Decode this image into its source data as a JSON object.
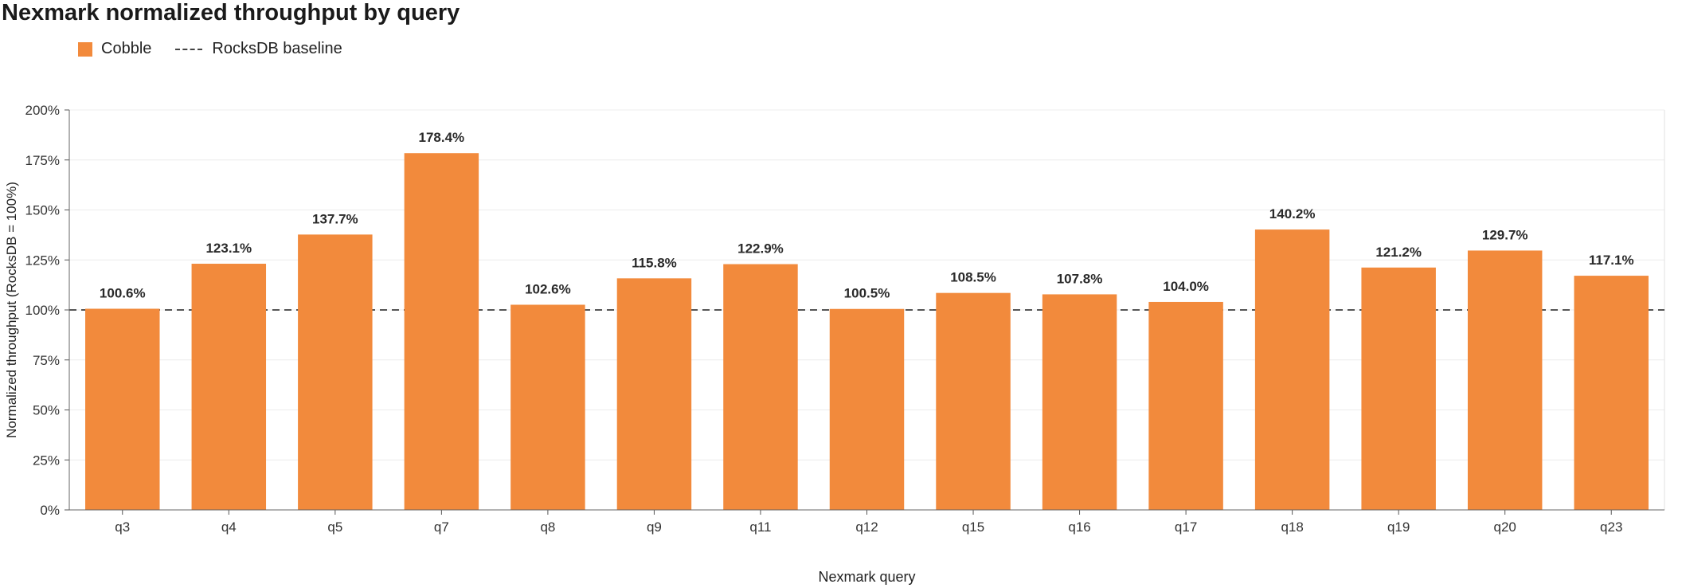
{
  "chart_data": {
    "type": "bar",
    "title": "Nexmark normalized throughput by query",
    "xlabel": "Nexmark query",
    "ylabel": "Normalized throughput (RocksDB = 100%)",
    "ylim": [
      0,
      200
    ],
    "yticks": [
      0,
      25,
      50,
      75,
      100,
      125,
      150,
      175,
      200
    ],
    "ytick_labels": [
      "0%",
      "25%",
      "50%",
      "75%",
      "100%",
      "125%",
      "150%",
      "175%",
      "200%"
    ],
    "categories": [
      "q3",
      "q4",
      "q5",
      "q7",
      "q8",
      "q9",
      "q11",
      "q12",
      "q15",
      "q16",
      "q17",
      "q18",
      "q19",
      "q20",
      "q23"
    ],
    "series": [
      {
        "name": "Cobble",
        "color": "#f28a3c",
        "values": [
          100.6,
          123.1,
          137.7,
          178.4,
          102.6,
          115.8,
          122.9,
          100.5,
          108.5,
          107.8,
          104.0,
          140.2,
          121.2,
          129.7,
          117.1
        ],
        "labels": [
          "100.6%",
          "123.1%",
          "137.7%",
          "178.4%",
          "102.6%",
          "115.8%",
          "122.9%",
          "100.5%",
          "108.5%",
          "107.8%",
          "104.0%",
          "140.2%",
          "121.2%",
          "129.7%",
          "117.1%"
        ]
      }
    ],
    "baseline": {
      "name": "RocksDB baseline",
      "value": 100,
      "style": "dashed",
      "color": "#555555"
    },
    "grid": true,
    "legend_position": "top-left"
  }
}
